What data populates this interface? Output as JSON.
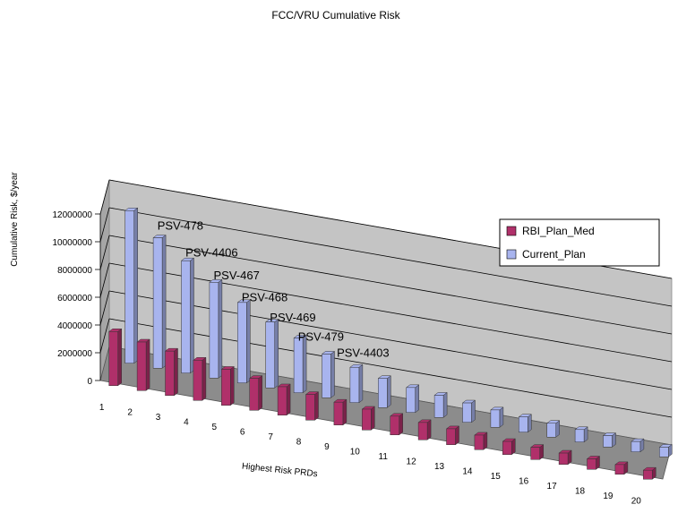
{
  "chart_data": {
    "type": "bar",
    "title": "FCC/VRU Cumulative Risk",
    "xlabel": "Highest Risk PRDs",
    "ylabel": "Cumulative Risk, $/year",
    "ylim": [
      0,
      12000000
    ],
    "yticks": [
      "0",
      "2000000",
      "4000000",
      "6000000",
      "8000000",
      "10000000",
      "12000000"
    ],
    "categories": [
      "1",
      "2",
      "3",
      "4",
      "5",
      "6",
      "7",
      "8",
      "9",
      "10",
      "11",
      "12",
      "13",
      "14",
      "15",
      "16",
      "17",
      "18",
      "19",
      "20"
    ],
    "series": [
      {
        "name": "RBI_Plan_Med",
        "color": "#b0306a",
        "values": [
          3900000,
          3500000,
          3200000,
          2900000,
          2600000,
          2300000,
          2050000,
          1850000,
          1650000,
          1500000,
          1350000,
          1250000,
          1150000,
          1050000,
          950000,
          880000,
          820000,
          760000,
          700000,
          650000
        ]
      },
      {
        "name": "Current_Plan",
        "color": "#a8b4ee",
        "values": [
          11000000,
          9400000,
          8100000,
          6900000,
          5800000,
          4750000,
          3950000,
          3150000,
          2550000,
          2100000,
          1800000,
          1600000,
          1400000,
          1250000,
          1100000,
          1000000,
          900000,
          820000,
          750000,
          700000
        ]
      }
    ],
    "annotations": [
      "PSV-478",
      "PSV-4406",
      "PSV-467",
      "PSV-468",
      "PSV-469",
      "PSV-479",
      "PSV-4403"
    ],
    "legend_position": "right",
    "grid": true
  }
}
